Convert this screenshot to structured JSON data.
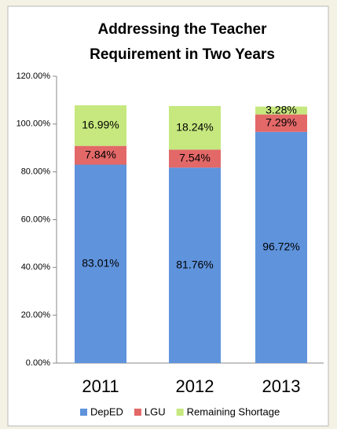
{
  "chart_data": {
    "type": "stacked_bar",
    "title": [
      "Addressing the Teacher",
      "Requirement in Two Years"
    ],
    "categories": [
      "2011",
      "2012",
      "2013"
    ],
    "series": [
      {
        "name": "DepED",
        "color": "#5f93dc",
        "values": [
          83.01,
          81.76,
          96.72
        ],
        "value_labels": [
          "83.01%",
          "81.76%",
          "96.72%"
        ]
      },
      {
        "name": "LGU",
        "color": "#e36868",
        "values": [
          7.84,
          7.54,
          7.29
        ],
        "value_labels": [
          "7.84%",
          "7.54%",
          "7.29%"
        ]
      },
      {
        "name": "Remaining Shortage",
        "color": "#c6e87e",
        "values": [
          16.99,
          18.24,
          3.28
        ],
        "value_labels": [
          "16.99%",
          "18.24%",
          "3.28%"
        ]
      }
    ],
    "ylim": [
      0,
      120
    ],
    "yticks": [
      {
        "value": 0,
        "label": "0.00%"
      },
      {
        "value": 20,
        "label": "20.00%"
      },
      {
        "value": 40,
        "label": "40.00%"
      },
      {
        "value": 60,
        "label": "60.00%"
      },
      {
        "value": 80,
        "label": "80.00%"
      },
      {
        "value": 100,
        "label": "100.00%"
      },
      {
        "value": 120,
        "label": "120.00%"
      }
    ],
    "legend": "bottom"
  }
}
